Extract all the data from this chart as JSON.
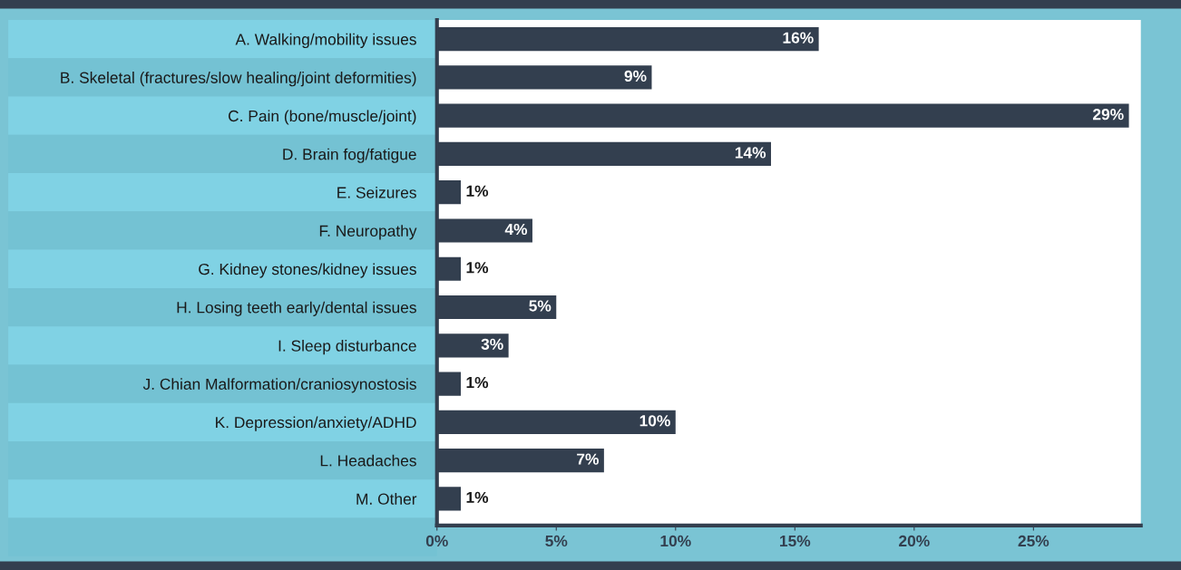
{
  "chart_data": {
    "type": "bar",
    "orientation": "horizontal",
    "categories": [
      "A. Walking/mobility issues",
      "B. Skeletal (fractures/slow healing/joint deformities)",
      "C. Pain (bone/muscle/joint)",
      "D. Brain fog/fatigue",
      "E. Seizures",
      "F. Neuropathy",
      "G. Kidney stones/kidney issues",
      "H. Losing teeth early/dental issues",
      "I. Sleep disturbance",
      "J. Chian Malformation/craniosynostosis",
      "K. Depression/anxiety/ADHD",
      "L. Headaches",
      "M. Other"
    ],
    "values": [
      16,
      9,
      29,
      14,
      1,
      4,
      1,
      5,
      3,
      1,
      10,
      7,
      1
    ],
    "color": "#333f4f",
    "value_labels": [
      "16%",
      "9%",
      "29%",
      "14%",
      "1%",
      "4%",
      "1%",
      "5%",
      "3%",
      "1%",
      "10%",
      "7%",
      "1%"
    ],
    "xlim": [
      0,
      29.5
    ],
    "xticks": [
      {
        "value": 0,
        "label": "0%"
      },
      {
        "value": 5,
        "label": "5%"
      },
      {
        "value": 10,
        "label": "10%"
      },
      {
        "value": 15,
        "label": "15%"
      },
      {
        "value": 20,
        "label": "20%"
      },
      {
        "value": 25,
        "label": "25%"
      }
    ],
    "grid": false,
    "legend": false
  }
}
